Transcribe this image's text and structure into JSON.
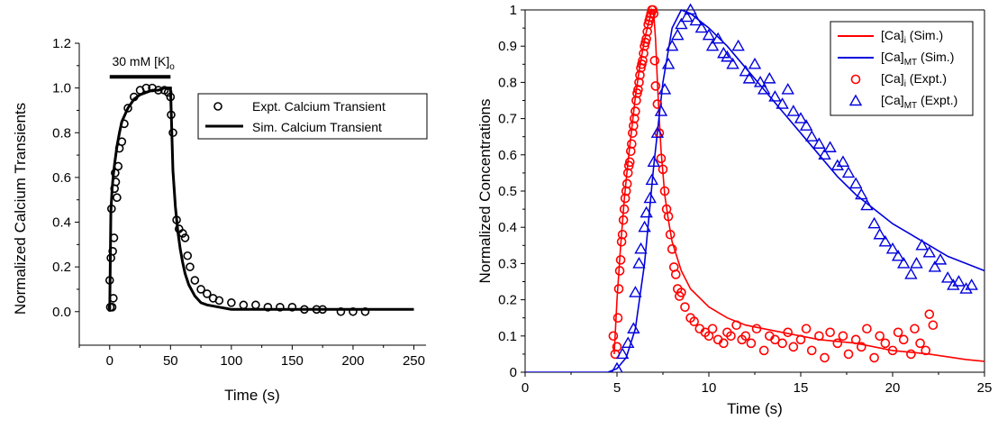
{
  "chart_data": [
    {
      "type": "scatter",
      "xlabel": "Time (s)",
      "ylabel": "Normalized Calcium Transients",
      "xlim": [
        -25,
        260
      ],
      "ylim": [
        -0.15,
        1.2
      ],
      "xticks": [
        0,
        50,
        100,
        150,
        200,
        250
      ],
      "yticks": [
        0.0,
        0.2,
        0.4,
        0.6,
        0.8,
        1.0,
        1.2
      ],
      "xtick_labels": [
        "0",
        "50",
        "100",
        "150",
        "200",
        "250"
      ],
      "ytick_labels": [
        "0.0",
        "0.2",
        "0.4",
        "0.6",
        "0.8",
        "1.0",
        "1.2"
      ],
      "grid": false,
      "legend_position": "right",
      "annotation": {
        "text": "30 mM [K]",
        "subscript": "o",
        "bar_x": [
          0,
          50
        ],
        "bar_y": 1.05
      },
      "series": [
        {
          "name": "Expt. Calcium Transient",
          "marker": "circle",
          "color": "#000000",
          "x": [
            0,
            0.5,
            1,
            1.5,
            2,
            2.5,
            3,
            3.5,
            4,
            4.5,
            5,
            6,
            7,
            8,
            10,
            12,
            15,
            20,
            25,
            30,
            35,
            40,
            45,
            48,
            50,
            50.5,
            52,
            55,
            57,
            60,
            62,
            64,
            66,
            70,
            75,
            80,
            85,
            90,
            100,
            110,
            120,
            130,
            140,
            150,
            160,
            170,
            175,
            190,
            200,
            210
          ],
          "y": [
            0.14,
            0.02,
            0.24,
            0.46,
            0.02,
            0.27,
            0.06,
            0.33,
            0.55,
            0.62,
            0.58,
            0.51,
            0.65,
            0.73,
            0.76,
            0.84,
            0.91,
            0.96,
            0.99,
            1.0,
            1.0,
            0.99,
            0.99,
            0.98,
            0.96,
            0.88,
            0.8,
            0.41,
            0.37,
            0.35,
            0.33,
            0.25,
            0.2,
            0.14,
            0.1,
            0.08,
            0.06,
            0.05,
            0.04,
            0.03,
            0.03,
            0.02,
            0.02,
            0.02,
            0.01,
            0.01,
            0.01,
            0.0,
            0.0,
            0.0
          ]
        },
        {
          "name": "Sim. Calcium Transient",
          "type": "line",
          "color": "#000000",
          "x": [
            0,
            1,
            2,
            3,
            4,
            6,
            8,
            10,
            15,
            20,
            25,
            30,
            35,
            40,
            45,
            50,
            52,
            54,
            56,
            58,
            60,
            62,
            65,
            70,
            75,
            80,
            90,
            100,
            120,
            150,
            200,
            250
          ],
          "y": [
            0.0,
            0.45,
            0.55,
            0.61,
            0.66,
            0.74,
            0.8,
            0.85,
            0.91,
            0.95,
            0.97,
            0.98,
            0.99,
            0.99,
            1.0,
            1.0,
            0.63,
            0.47,
            0.36,
            0.28,
            0.22,
            0.17,
            0.12,
            0.07,
            0.04,
            0.03,
            0.02,
            0.01,
            0.01,
            0.01,
            0.01,
            0.01
          ]
        }
      ]
    },
    {
      "type": "scatter",
      "xlabel": "Time (s)",
      "ylabel": "Normalized Concentrations",
      "xlim": [
        0,
        25
      ],
      "ylim": [
        0,
        1
      ],
      "xticks": [
        0,
        5,
        10,
        15,
        20,
        25
      ],
      "yticks": [
        0,
        0.1,
        0.2,
        0.3,
        0.4,
        0.5,
        0.6,
        0.7,
        0.8,
        0.9,
        1
      ],
      "xtick_labels": [
        "0",
        "5",
        "10",
        "15",
        "20",
        "25"
      ],
      "ytick_labels": [
        "0",
        "0.1",
        "0.2",
        "0.3",
        "0.4",
        "0.5",
        "0.6",
        "0.7",
        "0.8",
        "0.9",
        "1"
      ],
      "grid": false,
      "legend_position": "top-right",
      "series": [
        {
          "name": "[Ca]",
          "name_sub": "i",
          "name_suffix": " (Sim.)",
          "type": "line",
          "color": "#ff0000",
          "x": [
            4.85,
            5.0,
            5.2,
            5.4,
            5.6,
            5.8,
            6.0,
            6.2,
            6.4,
            6.6,
            6.8,
            6.9,
            7.0,
            7.1,
            7.2,
            7.3,
            7.4,
            7.6,
            7.8,
            8.0,
            8.5,
            9.0,
            10,
            11,
            12,
            13,
            14,
            15,
            16,
            18,
            20,
            22,
            24,
            25
          ],
          "y": [
            0.05,
            0.2,
            0.35,
            0.48,
            0.58,
            0.67,
            0.76,
            0.83,
            0.89,
            0.94,
            0.98,
            1.0,
            0.99,
            0.92,
            0.8,
            0.7,
            0.61,
            0.49,
            0.42,
            0.36,
            0.28,
            0.23,
            0.18,
            0.15,
            0.13,
            0.12,
            0.11,
            0.1,
            0.09,
            0.08,
            0.06,
            0.05,
            0.035,
            0.03
          ]
        },
        {
          "name": "[Ca]",
          "name_sub": "MT",
          "name_suffix": " (Sim.)",
          "type": "line",
          "color": "#0000dd",
          "x": [
            0,
            4.5,
            5.0,
            5.5,
            6.0,
            6.5,
            7.0,
            7.5,
            8.0,
            8.5,
            9.0,
            10,
            11,
            12,
            13,
            14,
            15,
            16,
            17,
            18,
            19,
            20,
            21,
            22,
            23,
            24,
            25
          ],
          "y": [
            0,
            0,
            0.01,
            0.04,
            0.12,
            0.3,
            0.57,
            0.8,
            0.95,
            1.0,
            0.99,
            0.95,
            0.9,
            0.84,
            0.78,
            0.72,
            0.66,
            0.6,
            0.54,
            0.49,
            0.45,
            0.41,
            0.38,
            0.35,
            0.32,
            0.3,
            0.28
          ]
        },
        {
          "name": "[Ca]",
          "name_sub": "i",
          "name_suffix": " (Expt.)",
          "marker": "circle",
          "color": "#ff0000",
          "x": [
            4.8,
            4.9,
            5.0,
            5.05,
            5.1,
            5.15,
            5.2,
            5.25,
            5.3,
            5.35,
            5.4,
            5.45,
            5.5,
            5.55,
            5.6,
            5.65,
            5.7,
            5.75,
            5.8,
            5.85,
            5.9,
            5.95,
            6.0,
            6.05,
            6.1,
            6.15,
            6.2,
            6.25,
            6.3,
            6.35,
            6.4,
            6.45,
            6.5,
            6.55,
            6.6,
            6.65,
            6.7,
            6.75,
            6.8,
            6.85,
            6.9,
            6.95,
            7.0,
            7.05,
            7.1,
            7.2,
            7.3,
            7.4,
            7.5,
            7.6,
            7.7,
            7.8,
            7.9,
            8.0,
            8.1,
            8.2,
            8.3,
            8.4,
            8.5,
            8.7,
            9.0,
            9.2,
            9.5,
            9.8,
            10.0,
            10.2,
            10.5,
            10.8,
            11.0,
            11.2,
            11.5,
            11.8,
            12.0,
            12.3,
            12.6,
            13.0,
            13.3,
            13.6,
            14.0,
            14.3,
            14.6,
            15.0,
            15.3,
            15.6,
            16.0,
            16.3,
            16.6,
            17.0,
            17.3,
            17.6,
            18.0,
            18.3,
            18.6,
            19.0,
            19.3,
            19.6,
            20.0,
            20.3,
            20.6,
            21.0,
            21.2,
            21.5,
            21.8,
            22.0,
            22.2
          ],
          "y": [
            0.1,
            0.05,
            0.07,
            0.15,
            0.23,
            0.28,
            0.31,
            0.36,
            0.38,
            0.42,
            0.45,
            0.48,
            0.5,
            0.52,
            0.55,
            0.57,
            0.58,
            0.61,
            0.63,
            0.66,
            0.68,
            0.7,
            0.72,
            0.75,
            0.77,
            0.78,
            0.8,
            0.82,
            0.84,
            0.85,
            0.86,
            0.88,
            0.9,
            0.91,
            0.92,
            0.94,
            0.96,
            0.97,
            0.98,
            0.99,
            1.0,
            1.0,
            0.99,
            0.86,
            0.79,
            0.74,
            0.66,
            0.59,
            0.56,
            0.5,
            0.45,
            0.43,
            0.38,
            0.34,
            0.29,
            0.27,
            0.23,
            0.21,
            0.22,
            0.18,
            0.15,
            0.14,
            0.12,
            0.11,
            0.1,
            0.12,
            0.09,
            0.08,
            0.11,
            0.1,
            0.13,
            0.09,
            0.1,
            0.08,
            0.12,
            0.06,
            0.1,
            0.09,
            0.08,
            0.11,
            0.07,
            0.09,
            0.12,
            0.06,
            0.1,
            0.04,
            0.11,
            0.08,
            0.1,
            0.05,
            0.09,
            0.07,
            0.12,
            0.04,
            0.1,
            0.08,
            0.06,
            0.11,
            0.09,
            0.05,
            0.12,
            0.08,
            0.06,
            0.16,
            0.13
          ]
        },
        {
          "name": "[Ca]",
          "name_sub": "MT",
          "name_suffix": " (Expt.)",
          "marker": "triangle",
          "color": "#0000dd",
          "x": [
            5.0,
            5.3,
            5.6,
            5.9,
            6.0,
            6.2,
            6.3,
            6.5,
            6.6,
            6.8,
            6.9,
            7.0,
            7.2,
            7.4,
            7.6,
            7.8,
            8.0,
            8.3,
            8.5,
            8.8,
            9.0,
            9.3,
            9.6,
            10.0,
            10.2,
            10.5,
            10.8,
            11.0,
            11.3,
            11.6,
            12.0,
            12.2,
            12.5,
            12.8,
            13.0,
            13.3,
            13.6,
            14.0,
            14.3,
            14.6,
            15.0,
            15.3,
            15.6,
            16.0,
            16.3,
            16.6,
            17.0,
            17.3,
            17.6,
            18.0,
            18.3,
            18.6,
            19.0,
            19.3,
            19.6,
            20.0,
            20.3,
            20.6,
            21.0,
            21.3,
            21.6,
            22.0,
            22.3,
            22.6,
            23.0,
            23.3,
            23.6,
            24.0,
            24.3
          ],
          "y": [
            0.01,
            0.05,
            0.08,
            0.12,
            0.22,
            0.3,
            0.34,
            0.4,
            0.44,
            0.48,
            0.53,
            0.58,
            0.66,
            0.72,
            0.78,
            0.85,
            0.9,
            0.93,
            0.96,
            0.98,
            1.0,
            0.97,
            0.95,
            0.93,
            0.9,
            0.92,
            0.88,
            0.87,
            0.85,
            0.9,
            0.83,
            0.81,
            0.85,
            0.8,
            0.78,
            0.81,
            0.76,
            0.74,
            0.78,
            0.72,
            0.7,
            0.68,
            0.65,
            0.63,
            0.6,
            0.62,
            0.57,
            0.58,
            0.55,
            0.52,
            0.49,
            0.46,
            0.41,
            0.38,
            0.36,
            0.34,
            0.32,
            0.3,
            0.27,
            0.3,
            0.35,
            0.33,
            0.29,
            0.31,
            0.26,
            0.24,
            0.25,
            0.23,
            0.24
          ]
        }
      ]
    }
  ]
}
